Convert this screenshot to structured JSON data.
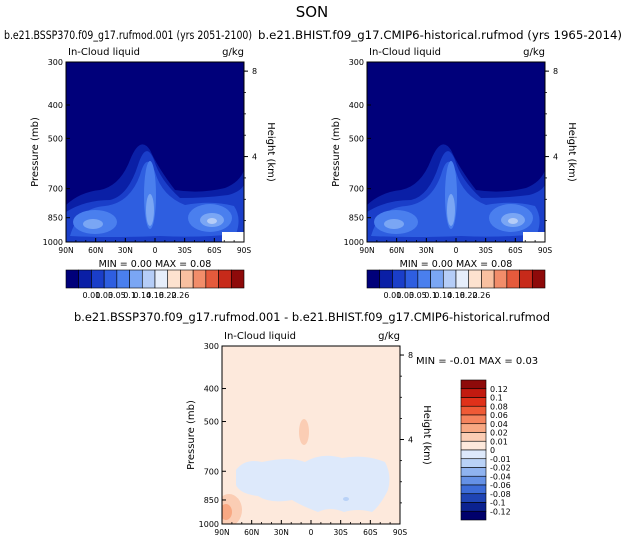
{
  "season": "SON",
  "panels": {
    "a": {
      "title": "b.e21.BSSP370.f09_g17.rufmod.001 (yrs 2051-2100)",
      "subtitle_left": "In-Cloud liquid",
      "subtitle_right": "g/kg",
      "min_max": "MIN =   0.00  MAX =   0.08"
    },
    "b": {
      "title": "b.e21.BHIST.f09_g17.CMIP6-historical.rufmod (yrs 1965-2014)",
      "subtitle_left": "In-Cloud liquid",
      "subtitle_right": "g/kg",
      "min_max": "MIN =   0.00  MAX =   0.08"
    },
    "diff": {
      "title": "b.e21.BSSP370.f09_g17.rufmod.001 - b.e21.BHIST.f09_g17.CMIP6-historical.rufmod",
      "subtitle_left": "In-Cloud liquid",
      "subtitle_right": "g/kg",
      "min_max": "MIN =  -0.01   MAX =   0.03"
    }
  },
  "axes": {
    "ylabel_left": "Pressure (mb)",
    "ylabel_right": "Height (km)",
    "pressure_ticks": [
      "300",
      "400",
      "500",
      "700",
      "850",
      "1000"
    ],
    "height_ticks": [
      "8",
      "4"
    ],
    "lat_ticks": [
      "90N",
      "60N",
      "30N",
      "0",
      "30S",
      "60S",
      "90S"
    ]
  },
  "colorbar_top": {
    "labels": [
      "0.01",
      "0.03",
      "0.05",
      "0.1",
      "0.14",
      "0.18",
      "0.22",
      "0.26"
    ],
    "colors": [
      "#00007a",
      "#0a1fa6",
      "#1a3ec9",
      "#2e5ee0",
      "#4a7fee",
      "#7aa6f4",
      "#b5cdf7",
      "#e6eefb",
      "#fde2cf",
      "#f9c0a0",
      "#f28d6a",
      "#e55a3c",
      "#c72a1a",
      "#8e0a0a"
    ]
  },
  "colorbar_diff": {
    "labels": [
      "0.12",
      "0.1",
      "0.08",
      "0.06",
      "0.04",
      "0.02",
      "0.01",
      "0",
      "-0.01",
      "-0.02",
      "-0.04",
      "-0.06",
      "-0.08",
      "-0.1",
      "-0.12"
    ],
    "colors": [
      "#8e0a0a",
      "#c21a10",
      "#e0311a",
      "#ef5a36",
      "#f5845e",
      "#f8a883",
      "#fbcdb4",
      "#fde9dc",
      "#dde9fb",
      "#b9d2f7",
      "#8fb3f0",
      "#6591e6",
      "#3d6cd8",
      "#1f44b4",
      "#0b2290",
      "#00006b"
    ]
  },
  "chart_data": [
    {
      "type": "heatmap",
      "title": "b.e21.BSSP370.f09_g17.rufmod.001 (yrs 2051-2100)",
      "xlabel": "",
      "ylabel": "Pressure (mb)",
      "x_ticks": [
        "90N",
        "60N",
        "30N",
        "0",
        "30S",
        "60S",
        "90S"
      ],
      "y_ticks": [
        300,
        400,
        500,
        700,
        850,
        1000
      ],
      "y_scale": "log-pressure",
      "secondary_ylabel": "Height (km)",
      "zlim": [
        0.0,
        0.08
      ],
      "features": [
        {
          "desc": "tropical convective column near equator",
          "lat": 2,
          "p_top": 450,
          "p_bottom": 1000,
          "max": 0.08
        },
        {
          "desc": "southern mid-latitude low cloud",
          "lat": -45,
          "p_top": 700,
          "p_bottom": 980,
          "max": 0.06
        },
        {
          "desc": "northern mid-latitude low cloud",
          "lat": 45,
          "p_top": 700,
          "p_bottom": 980,
          "max": 0.04
        }
      ]
    },
    {
      "type": "heatmap",
      "title": "b.e21.BHIST.f09_g17.CMIP6-historical.rufmod (yrs 1965-2014)",
      "xlabel": "",
      "ylabel": "Pressure (mb)",
      "x_ticks": [
        "90N",
        "60N",
        "30N",
        "0",
        "30S",
        "60S",
        "90S"
      ],
      "y_ticks": [
        300,
        400,
        500,
        700,
        850,
        1000
      ],
      "y_scale": "log-pressure",
      "secondary_ylabel": "Height (km)",
      "zlim": [
        0.0,
        0.08
      ],
      "features": [
        {
          "desc": "tropical convective column near equator",
          "lat": 2,
          "p_top": 450,
          "p_bottom": 1000,
          "max": 0.08
        },
        {
          "desc": "southern mid-latitude low cloud",
          "lat": -45,
          "p_top": 700,
          "p_bottom": 980,
          "max": 0.06
        },
        {
          "desc": "northern mid-latitude low cloud",
          "lat": 45,
          "p_top": 700,
          "p_bottom": 980,
          "max": 0.04
        }
      ]
    },
    {
      "type": "heatmap",
      "title": "b.e21.BSSP370.f09_g17.rufmod.001 - b.e21.BHIST.f09_g17.CMIP6-historical.rufmod",
      "xlabel": "",
      "ylabel": "Pressure (mb)",
      "x_ticks": [
        "90N",
        "60N",
        "30N",
        "0",
        "30S",
        "60S",
        "90S"
      ],
      "y_ticks": [
        300,
        400,
        500,
        700,
        850,
        1000
      ],
      "y_scale": "log-pressure",
      "secondary_ylabel": "Height (km)",
      "zlim": [
        -0.01,
        0.03
      ],
      "features": [
        {
          "desc": "weak positive background",
          "value": 0.005
        },
        {
          "desc": "negative band in lower troposphere",
          "lat_range": [
            75,
            -65
          ],
          "p_range": [
            690,
            890
          ],
          "value": -0.005
        },
        {
          "desc": "positive blob near equator",
          "lat": -5,
          "p": 520,
          "value": 0.01
        },
        {
          "desc": "positive maximum near north pole surface",
          "lat": 85,
          "p": 930,
          "value": 0.03
        }
      ]
    }
  ]
}
